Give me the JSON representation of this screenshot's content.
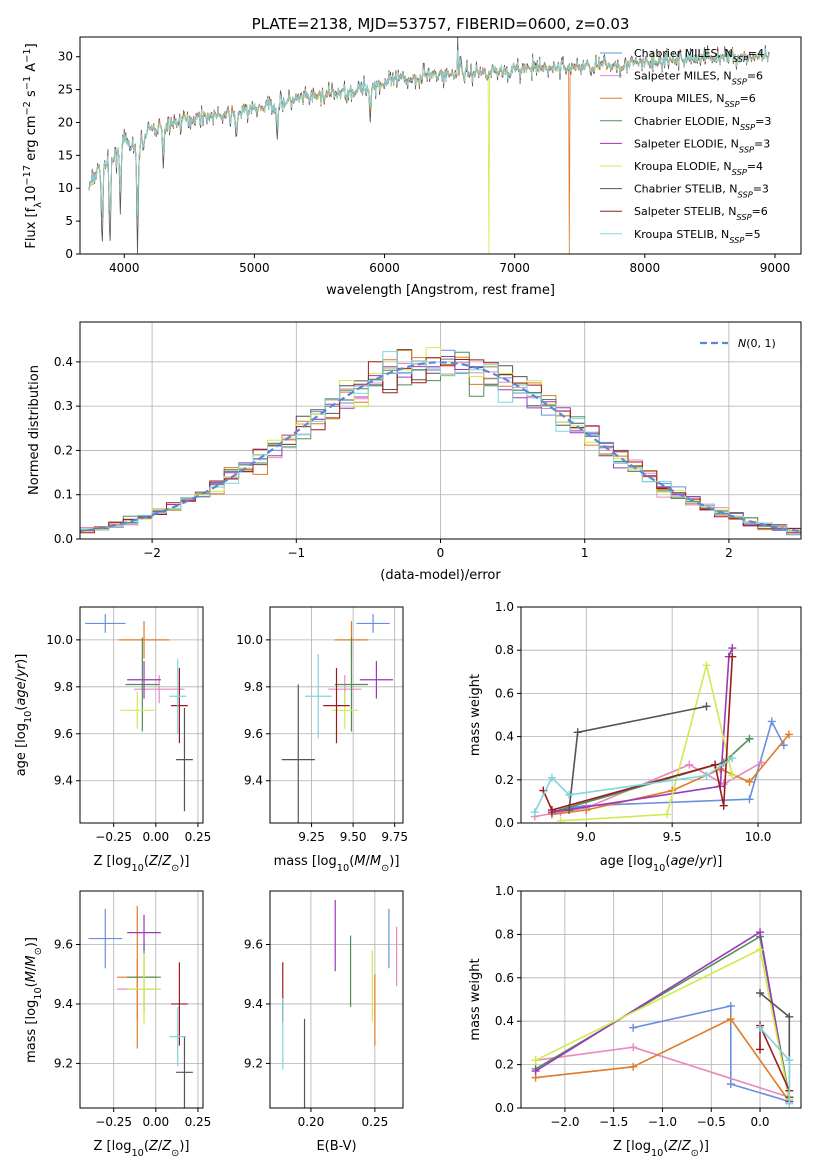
{
  "colors": [
    "#6a8fdc",
    "#e88ac0",
    "#e07b27",
    "#4f8f5a",
    "#9a3ab8",
    "#d2ea4f",
    "#555555",
    "#9e1b1b",
    "#7fd5dc"
  ],
  "chart_data": [
    {
      "id": "spectrum",
      "type": "line",
      "title": "PLATE=2138, MJD=53757, FIBERID=0600, z=0.03",
      "xlabel": "wavelength [Angstrom, rest frame]",
      "ylabel": "Flux [f_λ 10^-17 erg cm^-2 s^-1 A^-1]",
      "xlim": [
        3660,
        9200
      ],
      "ylim": [
        0,
        33
      ],
      "xticks": [
        4000,
        5000,
        6000,
        7000,
        8000,
        9000
      ],
      "yticks": [
        0,
        5,
        10,
        15,
        20,
        25,
        30
      ],
      "grid": false,
      "legend": "top-right",
      "legend_entries": [
        "Chabrier MILES, N_SSP=4",
        "Salpeter MILES, N_SSP=6",
        "Kroupa MILES, N_SSP=6",
        "Chabrier ELODIE, N_SSP=3",
        "Salpeter ELODIE, N_SSP=3",
        "Kroupa ELODIE, N_SSP=4",
        "Chabrier STELIB, N_SSP=3",
        "Salpeter STELIB, N_SSP=6",
        "Kroupa STELIB, N_SSP=5"
      ],
      "continuum": [
        [
          3730,
          10
        ],
        [
          3800,
          13
        ],
        [
          3900,
          14
        ],
        [
          4000,
          17
        ],
        [
          4100,
          16
        ],
        [
          4200,
          19
        ],
        [
          4400,
          20
        ],
        [
          4600,
          21
        ],
        [
          4800,
          21
        ],
        [
          5000,
          22
        ],
        [
          5200,
          23
        ],
        [
          5500,
          24
        ],
        [
          5800,
          25
        ],
        [
          6000,
          26
        ],
        [
          6300,
          27
        ],
        [
          6600,
          27.5
        ],
        [
          7000,
          28
        ],
        [
          7500,
          28.5
        ],
        [
          8000,
          29
        ],
        [
          8500,
          30
        ],
        [
          9000,
          30
        ]
      ],
      "absorption": [
        [
          3830,
          0
        ],
        [
          3890,
          0
        ],
        [
          3970,
          6
        ],
        [
          4102,
          0
        ],
        [
          4300,
          13
        ],
        [
          4861,
          17
        ],
        [
          5175,
          17
        ],
        [
          5890,
          20
        ]
      ],
      "emission": [
        [
          6563,
          33
        ],
        [
          6583,
          30
        ],
        [
          6300,
          29
        ]
      ],
      "dropouts": [
        [
          6800,
          "Kroupa ELODIE"
        ],
        [
          7420,
          "Kroupa MILES"
        ]
      ]
    },
    {
      "id": "residuals",
      "type": "histogram",
      "xlabel": "(data-model)/error",
      "ylabel": "Normed distribution",
      "xlim": [
        -2.5,
        2.5
      ],
      "ylim": [
        0,
        0.49
      ],
      "xticks": [
        -2,
        -1,
        0,
        1,
        2
      ],
      "yticks": [
        0.0,
        0.1,
        0.2,
        0.3,
        0.4
      ],
      "bin_width": 0.1,
      "grid": true,
      "legend": "top-right",
      "reference_curve": "N(0,1)",
      "legend_entries": [
        "N(0,1)"
      ]
    },
    {
      "id": "age-vs-Z",
      "type": "scatter",
      "xlabel": "Z [log10(Z/Z_sun)]",
      "ylabel": "age  [log10(age/yr)]",
      "xlim": [
        -0.45,
        0.28
      ],
      "ylim": [
        9.22,
        10.14
      ],
      "xticks": [
        -0.25,
        0.0,
        0.25
      ],
      "yticks": [
        9.4,
        9.6,
        9.8,
        10.0
      ],
      "grid": true,
      "points": [
        {
          "x": -0.3,
          "y": 10.07,
          "xerr": 0.12,
          "yerr": 0.04
        },
        {
          "x": 0.02,
          "y": 9.79,
          "xerr": 0.15,
          "yerr": 0.06
        },
        {
          "x": -0.07,
          "y": 10.0,
          "xerr": 0.15,
          "yerr": 0.08
        },
        {
          "x": -0.08,
          "y": 9.81,
          "xerr": 0.1,
          "yerr": 0.2
        },
        {
          "x": -0.07,
          "y": 9.83,
          "xerr": 0.1,
          "yerr": 0.08
        },
        {
          "x": -0.11,
          "y": 9.7,
          "xerr": 0.1,
          "yerr": 0.08
        },
        {
          "x": 0.17,
          "y": 9.49,
          "xerr": 0.05,
          "yerr": 0.22
        },
        {
          "x": 0.14,
          "y": 9.72,
          "xerr": 0.05,
          "yerr": 0.16
        },
        {
          "x": 0.13,
          "y": 9.76,
          "xerr": 0.05,
          "yerr": 0.16
        }
      ]
    },
    {
      "id": "age-vs-mass",
      "type": "scatter",
      "xlabel": "mass [log10(M/M_sun)]",
      "ylabel": "",
      "xlim": [
        9.0,
        9.8
      ],
      "ylim": [
        9.22,
        10.14
      ],
      "xticks": [
        9.25,
        9.5,
        9.75
      ],
      "yticks": [
        9.4,
        9.6,
        9.8,
        10.0
      ],
      "grid": true,
      "points": [
        {
          "x": 9.62,
          "y": 10.07,
          "xerr": 0.1,
          "yerr": 0.04
        },
        {
          "x": 9.45,
          "y": 9.79,
          "xerr": 0.1,
          "yerr": 0.06
        },
        {
          "x": 9.49,
          "y": 10.0,
          "xerr": 0.1,
          "yerr": 0.08
        },
        {
          "x": 9.49,
          "y": 9.81,
          "xerr": 0.1,
          "yerr": 0.2
        },
        {
          "x": 9.64,
          "y": 9.83,
          "xerr": 0.1,
          "yerr": 0.08
        },
        {
          "x": 9.45,
          "y": 9.7,
          "xerr": 0.08,
          "yerr": 0.08
        },
        {
          "x": 9.17,
          "y": 9.49,
          "xerr": 0.1,
          "yerr": 0.32
        },
        {
          "x": 9.4,
          "y": 9.72,
          "xerr": 0.08,
          "yerr": 0.16
        },
        {
          "x": 9.29,
          "y": 9.76,
          "xerr": 0.08,
          "yerr": 0.18
        }
      ]
    },
    {
      "id": "weight-vs-age",
      "type": "line",
      "xlabel": "age  [log10(age/yr)]",
      "ylabel": "mass weight",
      "xlim": [
        8.62,
        10.25
      ],
      "ylim": [
        0,
        1.0
      ],
      "xticks": [
        9.0,
        9.5,
        10.0
      ],
      "yticks": [
        0.0,
        0.2,
        0.4,
        0.6,
        0.8,
        1.0
      ],
      "grid": true,
      "series": [
        {
          "x": [
            8.8,
            8.9,
            9.0,
            9.95,
            10.08,
            10.15
          ],
          "y": [
            0.05,
            0.07,
            0.08,
            0.11,
            0.47,
            0.36
          ]
        },
        {
          "x": [
            8.7,
            8.85,
            9.0,
            9.6,
            9.8,
            10.02
          ],
          "y": [
            0.03,
            0.05,
            0.07,
            0.27,
            0.18,
            0.28
          ]
        },
        {
          "x": [
            8.8,
            9.0,
            9.5,
            9.78,
            9.95,
            10.18
          ],
          "y": [
            0.04,
            0.06,
            0.15,
            0.25,
            0.19,
            0.41
          ]
        },
        {
          "x": [
            8.8,
            9.8,
            9.95
          ],
          "y": [
            0.05,
            0.28,
            0.39
          ]
        },
        {
          "x": [
            8.8,
            9.78,
            9.83,
            9.85
          ],
          "y": [
            0.05,
            0.17,
            0.77,
            0.81
          ]
        },
        {
          "x": [
            8.85,
            9.47,
            9.7,
            9.85
          ],
          "y": [
            0.01,
            0.04,
            0.73,
            0.22
          ]
        },
        {
          "x": [
            8.9,
            8.95,
            9.7
          ],
          "y": [
            0.06,
            0.42,
            0.54
          ]
        },
        {
          "x": [
            8.75,
            8.8,
            9.75,
            9.8,
            9.85
          ],
          "y": [
            0.15,
            0.06,
            0.27,
            0.08,
            0.77
          ]
        },
        {
          "x": [
            8.7,
            8.8,
            8.9,
            9.7,
            9.85
          ],
          "y": [
            0.05,
            0.21,
            0.13,
            0.22,
            0.3
          ]
        }
      ]
    },
    {
      "id": "mass-vs-Z",
      "type": "scatter",
      "xlabel": "Z [log10(Z/Z_sun)]",
      "ylabel": "mass [log10(M/M_sun)]",
      "xlim": [
        -0.45,
        0.28
      ],
      "ylim": [
        9.05,
        9.78
      ],
      "xticks": [
        -0.25,
        0.0,
        0.25
      ],
      "yticks": [
        9.2,
        9.4,
        9.6
      ],
      "grid": true,
      "points": [
        {
          "x": -0.3,
          "y": 9.62,
          "xerr": 0.1,
          "yerr": 0.1
        },
        {
          "x": -0.11,
          "y": 9.45,
          "xerr": 0.12,
          "yerr": 0.1
        },
        {
          "x": -0.11,
          "y": 9.49,
          "xerr": 0.12,
          "yerr": 0.24
        },
        {
          "x": -0.07,
          "y": 9.49,
          "xerr": 0.1,
          "yerr": 0.12
        },
        {
          "x": -0.07,
          "y": 9.64,
          "xerr": 0.1,
          "yerr": 0.06
        },
        {
          "x": -0.07,
          "y": 9.45,
          "xerr": 0.1,
          "yerr": 0.12
        },
        {
          "x": 0.17,
          "y": 9.17,
          "xerr": 0.05,
          "yerr": 0.12
        },
        {
          "x": 0.14,
          "y": 9.4,
          "xerr": 0.05,
          "yerr": 0.14
        },
        {
          "x": 0.13,
          "y": 9.29,
          "xerr": 0.05,
          "yerr": 0.1
        }
      ]
    },
    {
      "id": "mass-vs-EBV",
      "type": "scatter",
      "xlabel": "E(B-V)",
      "ylabel": "",
      "xlim": [
        0.168,
        0.272
      ],
      "ylim": [
        9.05,
        9.78
      ],
      "xticks": [
        0.2,
        0.25
      ],
      "yticks": [
        9.2,
        9.4,
        9.6
      ],
      "grid": true,
      "points": [
        {
          "x": 0.261,
          "y": 9.62,
          "yerr": 0.1
        },
        {
          "x": 0.267,
          "y": 9.56,
          "yerr": 0.1
        },
        {
          "x": 0.25,
          "y": 9.38,
          "yerr": 0.12
        },
        {
          "x": 0.231,
          "y": 9.51,
          "yerr": 0.12
        },
        {
          "x": 0.219,
          "y": 9.63,
          "yerr": 0.12
        },
        {
          "x": 0.248,
          "y": 9.46,
          "yerr": 0.12
        },
        {
          "x": 0.195,
          "y": 9.2,
          "yerr": 0.15
        },
        {
          "x": 0.178,
          "y": 9.44,
          "yerr": 0.1
        },
        {
          "x": 0.178,
          "y": 9.3,
          "yerr": 0.12
        }
      ]
    },
    {
      "id": "weight-vs-Z",
      "type": "line",
      "xlabel": "Z [log10(Z/Z_sun)]",
      "ylabel": "mass weight",
      "xlim": [
        -2.45,
        0.42
      ],
      "ylim": [
        0,
        1.0
      ],
      "xticks": [
        -2.0,
        -1.5,
        -1.0,
        -0.5,
        0.0
      ],
      "yticks": [
        0.0,
        0.2,
        0.4,
        0.6,
        0.8,
        1.0
      ],
      "grid": true,
      "series": [
        {
          "x": [
            -1.3,
            -0.3,
            -0.3,
            0.3
          ],
          "y": [
            0.37,
            0.47,
            0.11,
            0.03
          ]
        },
        {
          "x": [
            -2.3,
            -1.3,
            0.3
          ],
          "y": [
            0.22,
            0.28,
            0.05
          ]
        },
        {
          "x": [
            -2.3,
            -1.3,
            -0.3,
            0.3
          ],
          "y": [
            0.14,
            0.19,
            0.41,
            0.03
          ]
        },
        {
          "x": [
            -2.3,
            0.0,
            0.3
          ],
          "y": [
            0.18,
            0.79,
            0.05
          ]
        },
        {
          "x": [
            -2.3,
            0.0,
            0.3
          ],
          "y": [
            0.17,
            0.81,
            0.03
          ]
        },
        {
          "x": [
            -2.3,
            0.0,
            0.3
          ],
          "y": [
            0.22,
            0.73,
            0.04
          ]
        },
        {
          "x": [
            0.0,
            0.3,
            0.3
          ],
          "y": [
            0.53,
            0.42,
            0.05
          ]
        },
        {
          "x": [
            0.0,
            0.0,
            0.3
          ],
          "y": [
            0.27,
            0.38,
            0.08
          ]
        },
        {
          "x": [
            0.0,
            0.3,
            0.3
          ],
          "y": [
            0.37,
            0.22,
            0.02
          ]
        }
      ]
    }
  ]
}
